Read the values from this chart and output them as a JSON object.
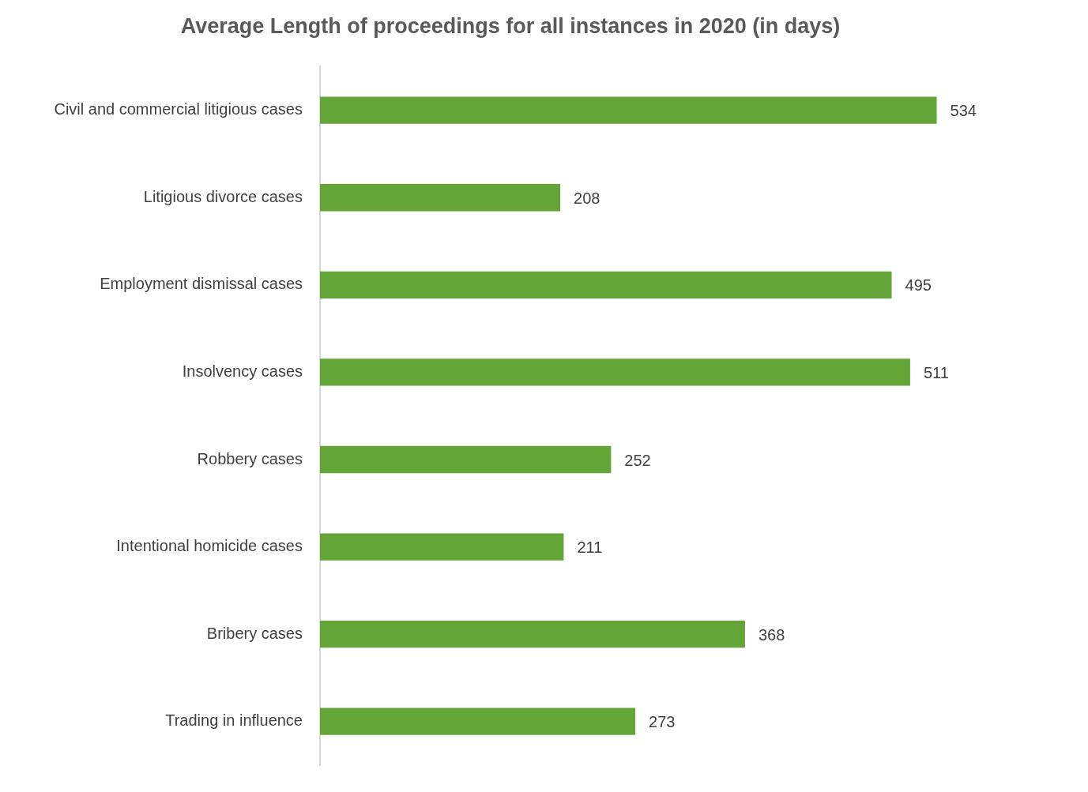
{
  "chart_data": {
    "type": "bar",
    "orientation": "horizontal",
    "title": "Average Length of proceedings for all instances in 2020 (in days)",
    "categories": [
      "Civil and commercial litigious cases",
      "Litigious divorce cases",
      "Employment dismissal cases",
      "Insolvency cases",
      "Robbery cases",
      "Intentional homicide cases",
      "Bribery cases",
      "Trading in influence"
    ],
    "values": [
      534,
      208,
      495,
      511,
      252,
      211,
      368,
      273
    ],
    "color": "#63a537",
    "data_labels": true,
    "grid": false,
    "legend": false
  }
}
